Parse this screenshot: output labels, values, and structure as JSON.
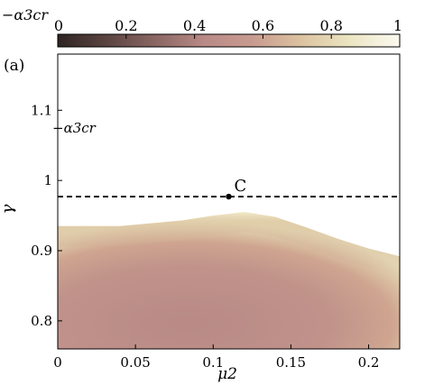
{
  "panel_label": "(a)",
  "colorbar": {
    "label": "−α3cr",
    "ticks": [
      "0",
      "0.2",
      "0.4",
      "0.6",
      "0.8",
      "1"
    ],
    "range": [
      0,
      1
    ],
    "colors": [
      "#2e2422",
      "#5b4441",
      "#8a6663",
      "#b98a86",
      "#c89b90",
      "#dcc3a0",
      "#ece6c3",
      "#fbf9f0"
    ]
  },
  "chart_data": {
    "type": "heatmap",
    "xlabel": "μ2",
    "ylabel": "γ",
    "xlim": [
      0,
      0.22
    ],
    "ylim": [
      0.76,
      1.18
    ],
    "xticks": [
      "0",
      "0.05",
      "0.1",
      "0.15",
      "0.2"
    ],
    "yticks": [
      "0.8",
      "0.9",
      "1",
      "1.1"
    ],
    "inner_label": "−α3cr",
    "boundary": {
      "mu2": [
        0,
        0.04,
        0.08,
        0.1,
        0.12,
        0.14,
        0.16,
        0.18,
        0.2,
        0.22
      ],
      "gamma": [
        0.935,
        0.935,
        0.943,
        0.95,
        0.955,
        0.948,
        0.933,
        0.917,
        0.903,
        0.892
      ]
    },
    "reference_line": {
      "gamma": 0.977,
      "style": "dashed"
    },
    "point": {
      "label": "C",
      "mu2": 0.11,
      "gamma": 0.977
    }
  }
}
